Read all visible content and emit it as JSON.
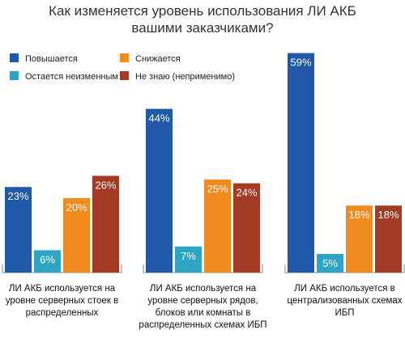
{
  "chart_data": {
    "type": "bar",
    "title": "Как изменяется уровень использования ЛИ АКБ вашими заказчиками?",
    "categories": [
      "ЛИ АКБ используется на уровне серверных стоек в распределенных",
      "ЛИ АКБ используется на уровне серверных рядов, блоков или комнаты в распределенных схемах ИБП",
      "ЛИ АКБ используется в централизованных схемах ИБП"
    ],
    "series": [
      {
        "name": "Повышается",
        "color": "#1f59a8",
        "values": [
          23,
          44,
          59
        ]
      },
      {
        "name": "Остается неизменным",
        "color": "#2ea5c5",
        "values": [
          6,
          7,
          5
        ]
      },
      {
        "name": "Снижается",
        "color": "#f28a1e",
        "values": [
          20,
          25,
          18
        ]
      },
      {
        "name": "Не знаю (неприменимо)",
        "color": "#a23a24",
        "values": [
          26,
          24,
          18
        ]
      }
    ],
    "value_suffix": "%",
    "ylim": [
      0,
      65
    ],
    "legend_position": "top-left",
    "grid": false
  }
}
